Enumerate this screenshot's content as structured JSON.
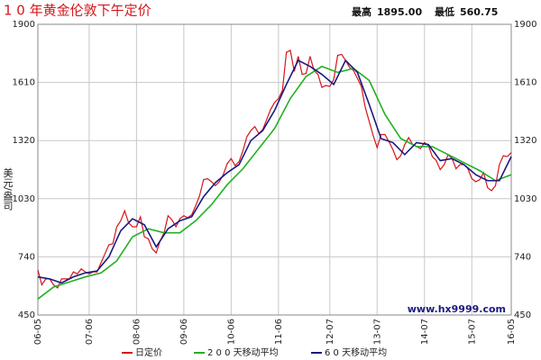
{
  "chart_data": {
    "type": "line",
    "title": "1 0 年黄金伦敦下午定价",
    "stats": [
      {
        "label": "最高",
        "value": "1895.00"
      },
      {
        "label": "最低",
        "value": "560.75"
      }
    ],
    "y_label": "美元/盎司",
    "watermark": "www.hx9999.com",
    "xlim": [
      0,
      120
    ],
    "xticks": [
      {
        "value": 0,
        "label": "06-05"
      },
      {
        "value": 13,
        "label": "07-06"
      },
      {
        "value": 25,
        "label": "08-06"
      },
      {
        "value": 37,
        "label": "09-06"
      },
      {
        "value": 49,
        "label": "10-06"
      },
      {
        "value": 61,
        "label": "11-06"
      },
      {
        "value": 74,
        "label": "12-07"
      },
      {
        "value": 86,
        "label": "13-07"
      },
      {
        "value": 98,
        "label": "14-07"
      },
      {
        "value": 110,
        "label": "15-07"
      },
      {
        "value": 120,
        "label": "16-05"
      }
    ],
    "ylim": [
      450,
      1900
    ],
    "yticks": [
      450,
      740,
      1030,
      1320,
      1610,
      1900
    ],
    "grid": true,
    "legend": "bottom",
    "series": [
      {
        "name": "日定价",
        "color": "#d4161b",
        "x": [
          0,
          1,
          2,
          3,
          4,
          5,
          6,
          7,
          8,
          9,
          10,
          11,
          12,
          13,
          14,
          15,
          16,
          17,
          18,
          19,
          20,
          21,
          22,
          23,
          24,
          25,
          26,
          27,
          28,
          29,
          30,
          31,
          32,
          33,
          34,
          35,
          36,
          37,
          38,
          39,
          40,
          41,
          42,
          43,
          44,
          45,
          46,
          47,
          48,
          49,
          50,
          51,
          52,
          53,
          54,
          55,
          56,
          57,
          58,
          59,
          60,
          61,
          62,
          63,
          64,
          65,
          66,
          67,
          68,
          69,
          70,
          71,
          72,
          73,
          74,
          75,
          76,
          77,
          78,
          79,
          80,
          81,
          82,
          83,
          84,
          85,
          86,
          87,
          88,
          89,
          90,
          91,
          92,
          93,
          94,
          95,
          96,
          97,
          98,
          99,
          100,
          101,
          102,
          103,
          104,
          105,
          106,
          107,
          108,
          109,
          110,
          111,
          112,
          113,
          114,
          115,
          116,
          117,
          118,
          119,
          120
        ],
        "values": [
          675,
          600,
          630,
          630,
          600,
          585,
          630,
          630,
          630,
          665,
          655,
          680,
          665,
          655,
          665,
          665,
          710,
          755,
          800,
          805,
          890,
          920,
          970,
          910,
          890,
          890,
          940,
          840,
          830,
          780,
          760,
          820,
          860,
          945,
          925,
          890,
          930,
          945,
          935,
          950,
          995,
          1045,
          1125,
          1130,
          1115,
          1095,
          1115,
          1150,
          1205,
          1230,
          1195,
          1215,
          1270,
          1340,
          1370,
          1390,
          1355,
          1375,
          1425,
          1475,
          1510,
          1530,
          1570,
          1760,
          1770,
          1665,
          1740,
          1650,
          1655,
          1740,
          1670,
          1650,
          1585,
          1595,
          1590,
          1625,
          1745,
          1750,
          1720,
          1685,
          1670,
          1630,
          1590,
          1485,
          1415,
          1345,
          1285,
          1350,
          1350,
          1315,
          1275,
          1225,
          1245,
          1300,
          1335,
          1300,
          1290,
          1280,
          1310,
          1295,
          1240,
          1220,
          1175,
          1200,
          1250,
          1230,
          1180,
          1200,
          1200,
          1180,
          1130,
          1115,
          1125,
          1160,
          1085,
          1070,
          1095,
          1200,
          1245,
          1240,
          1260
        ]
      },
      {
        "name": "2 0 0 天移动平均",
        "color": "#22b022",
        "x": [
          0,
          4,
          8,
          12,
          16,
          20,
          24,
          28,
          32,
          36,
          40,
          44,
          48,
          52,
          56,
          60,
          64,
          68,
          72,
          76,
          80,
          84,
          88,
          92,
          96,
          100,
          104,
          108,
          112,
          116,
          120
        ],
        "values": [
          530,
          590,
          615,
          640,
          660,
          720,
          840,
          880,
          860,
          860,
          920,
          1000,
          1100,
          1180,
          1280,
          1380,
          1530,
          1640,
          1690,
          1660,
          1680,
          1620,
          1450,
          1330,
          1290,
          1290,
          1250,
          1210,
          1170,
          1120,
          1150
        ]
      },
      {
        "name": "6 0 天移动平均",
        "color": "#1a1a80",
        "x": [
          0,
          3,
          6,
          9,
          12,
          15,
          18,
          21,
          24,
          27,
          30,
          33,
          36,
          39,
          42,
          45,
          48,
          51,
          54,
          57,
          60,
          63,
          66,
          69,
          72,
          75,
          78,
          81,
          84,
          87,
          90,
          93,
          96,
          99,
          102,
          105,
          108,
          111,
          114,
          117,
          120
        ],
        "values": [
          640,
          630,
          610,
          640,
          660,
          670,
          740,
          870,
          930,
          900,
          790,
          880,
          920,
          940,
          1040,
          1110,
          1160,
          1200,
          1320,
          1370,
          1470,
          1600,
          1720,
          1690,
          1650,
          1600,
          1720,
          1660,
          1500,
          1330,
          1310,
          1250,
          1310,
          1300,
          1220,
          1230,
          1200,
          1150,
          1120,
          1120,
          1240
        ]
      }
    ]
  }
}
